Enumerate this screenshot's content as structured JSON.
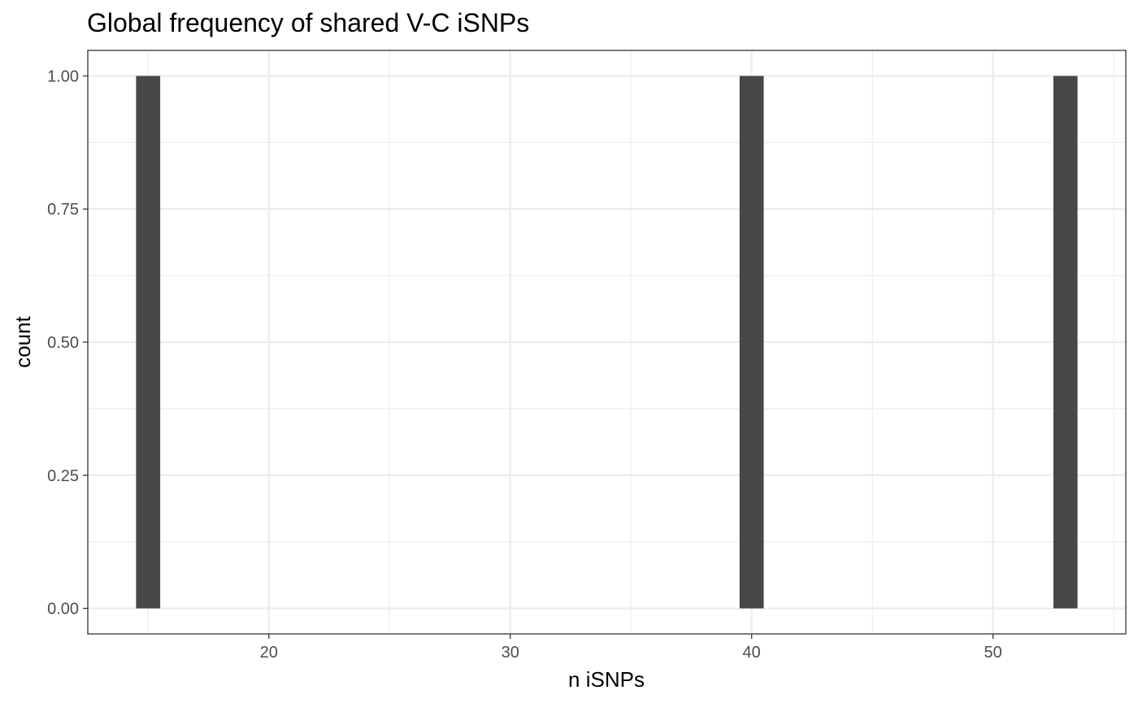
{
  "chart_data": {
    "type": "bar",
    "title": "Global frequency of shared V-C iSNPs",
    "xlabel": "n iSNPs",
    "ylabel": "count",
    "x": [
      15,
      40,
      53
    ],
    "values": [
      1,
      1,
      1
    ],
    "bin_width": 1,
    "xlim": [
      12.5,
      55.5
    ],
    "ylim": [
      -0.048,
      1.048
    ],
    "x_ticks": [
      20,
      30,
      40,
      50
    ],
    "x_tick_labels": [
      "20",
      "30",
      "40",
      "50"
    ],
    "y_ticks": [
      0,
      0.25,
      0.5,
      0.75,
      1
    ],
    "y_tick_labels": [
      "0.00",
      "0.25",
      "0.50",
      "0.75",
      "1.00"
    ],
    "grid": true,
    "legend": "none",
    "colors": {
      "bar": "#474747",
      "grid": "#ebebeb",
      "border": "#333333",
      "background": "#ffffff"
    }
  }
}
